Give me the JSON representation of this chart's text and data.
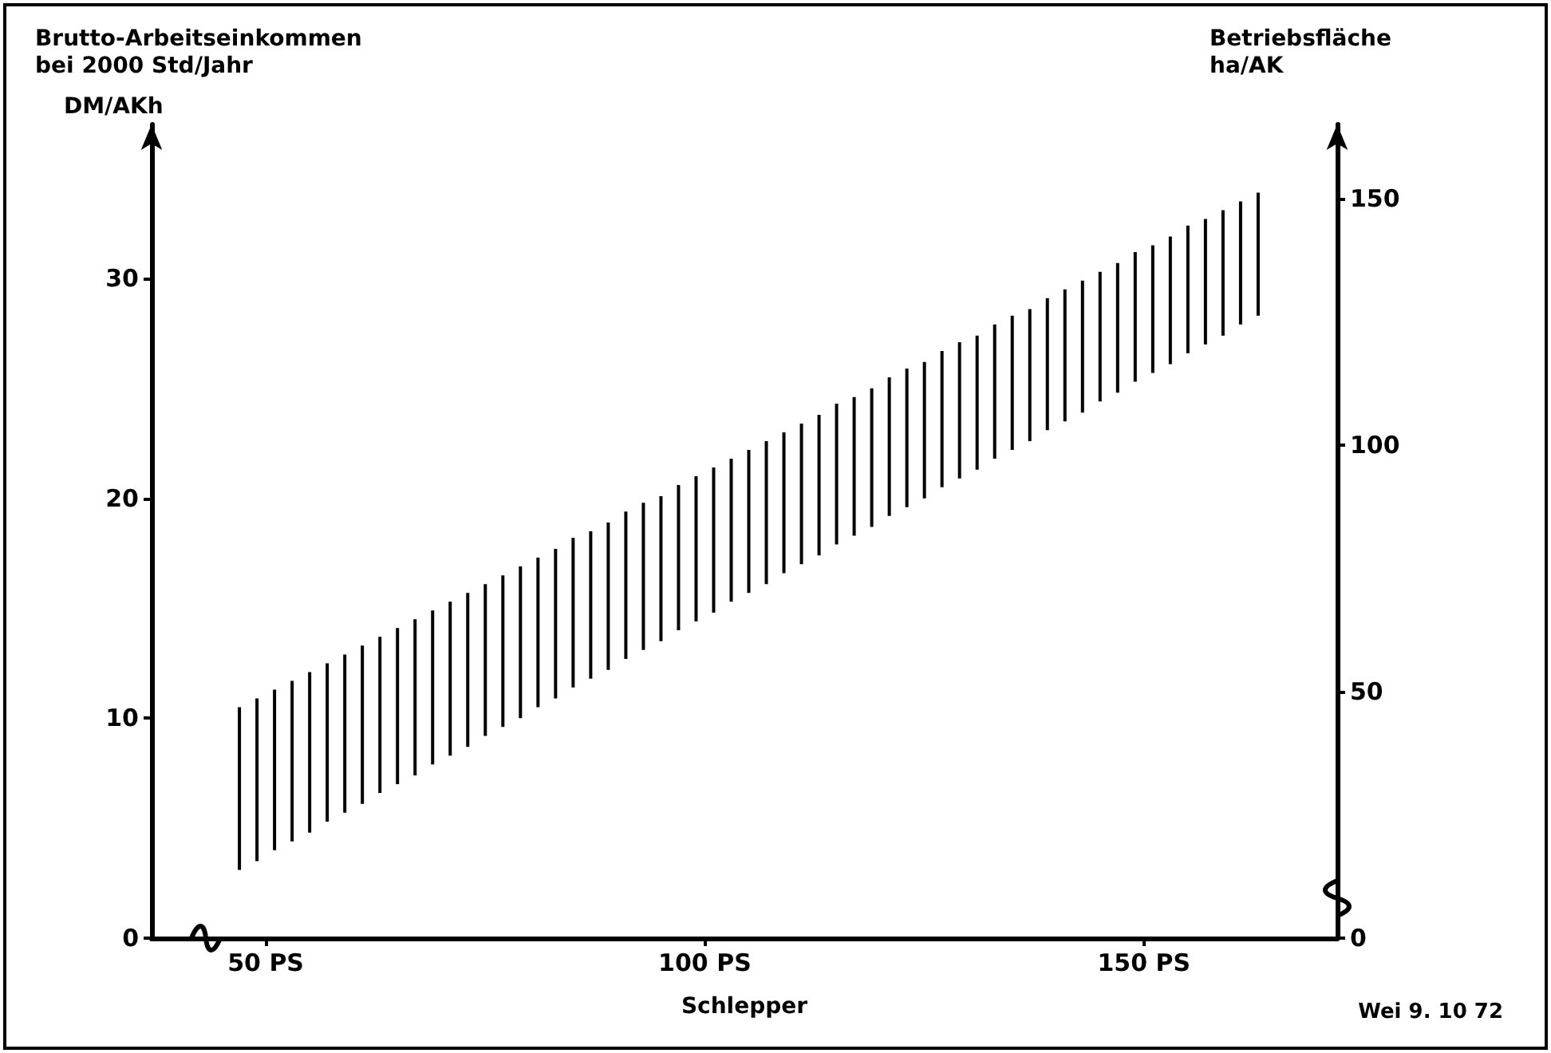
{
  "chart_data": {
    "type": "bar",
    "xlabel": "Schlepper",
    "ylabel": "Brutto-Arbeitseinkommen\nbei 2000 Std/Jahr",
    "y2label": "Betriebsfläche\nha/AK",
    "annotations": [
      "DM/AKh",
      "Wei 9. 10 72"
    ],
    "x": [
      47,
      49,
      51,
      53,
      55,
      57,
      59,
      61,
      63,
      65,
      67,
      69,
      71,
      73,
      75,
      77,
      79,
      81,
      83,
      85,
      87,
      89,
      91,
      93,
      95,
      97,
      99,
      101,
      103,
      105,
      107,
      109,
      111,
      113,
      115,
      117,
      119,
      121,
      123,
      125,
      127,
      129,
      131,
      133,
      135,
      137,
      139,
      141,
      143,
      145,
      147,
      149,
      151,
      153,
      155,
      157,
      159,
      161,
      163
    ],
    "base": [
      3.1,
      3.5,
      4.0,
      4.4,
      4.8,
      5.3,
      5.7,
      6.1,
      6.6,
      7.0,
      7.4,
      7.9,
      8.3,
      8.7,
      9.2,
      9.6,
      10.0,
      10.5,
      10.9,
      11.4,
      11.8,
      12.2,
      12.7,
      13.1,
      13.5,
      14.0,
      14.4,
      14.8,
      15.3,
      15.7,
      16.1,
      16.6,
      17.0,
      17.4,
      17.9,
      18.3,
      18.7,
      19.2,
      19.6,
      20.0,
      20.5,
      20.9,
      21.3,
      21.8,
      22.2,
      22.6,
      23.1,
      23.5,
      23.9,
      24.4,
      24.8,
      25.3,
      25.7,
      26.1,
      26.6,
      27.0,
      27.4,
      27.9,
      28.3
    ],
    "values": [
      7.4,
      7.4,
      7.3,
      7.3,
      7.3,
      7.2,
      7.2,
      7.2,
      7.1,
      7.1,
      7.1,
      7.0,
      7.0,
      7.0,
      6.9,
      6.9,
      6.9,
      6.8,
      6.8,
      6.8,
      6.7,
      6.7,
      6.7,
      6.7,
      6.6,
      6.6,
      6.6,
      6.6,
      6.5,
      6.5,
      6.5,
      6.4,
      6.4,
      6.4,
      6.4,
      6.3,
      6.3,
      6.3,
      6.3,
      6.2,
      6.2,
      6.2,
      6.1,
      6.1,
      6.1,
      6.0,
      6.0,
      6.0,
      6.0,
      5.9,
      5.9,
      5.9,
      5.8,
      5.8,
      5.8,
      5.7,
      5.7,
      5.6,
      5.6
    ],
    "color": "#000000",
    "xlim": [
      37,
      172
    ],
    "xticks": [
      {
        "value": 50,
        "label": "50 PS"
      },
      {
        "value": 100,
        "label": "100 PS"
      },
      {
        "value": 150,
        "label": "150 PS"
      }
    ],
    "ylim": [
      0,
      37
    ],
    "yticks": [
      0,
      10,
      20,
      30
    ],
    "y2lim": [
      0,
      165
    ],
    "y2ticks": [
      0,
      50,
      100,
      150
    ],
    "grid": false
  }
}
